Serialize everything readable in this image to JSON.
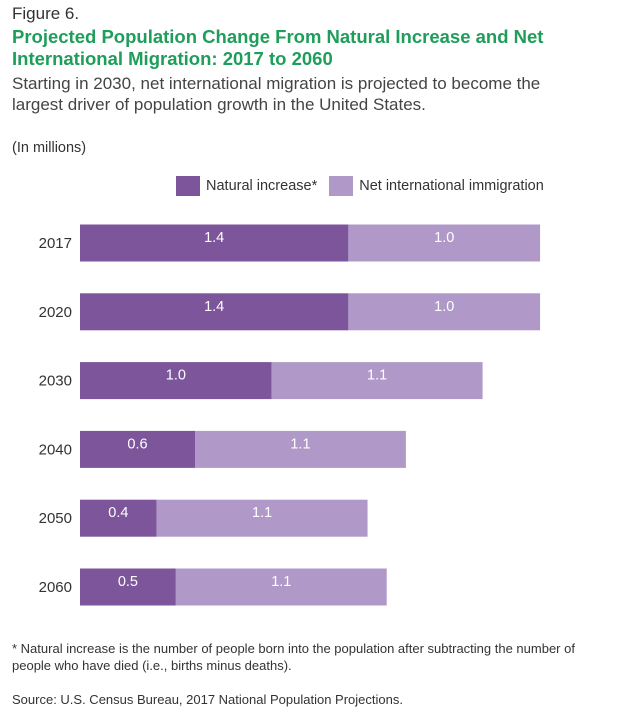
{
  "figure_label": "Figure 6.",
  "title": "Projected Population Change From Natural Increase and Net International Migration: 2017 to 2060",
  "subtitle": "Starting in 2030, net international migration is projected to become the largest driver of population growth in the United States.",
  "units": "(In millions)",
  "footnote": "* Natural increase is the number of people born into the population after subtracting the number of people who have died (i.e., births minus deaths).",
  "source": "Source: U.S. Census Bureau, 2017 National Population Projections.",
  "colors": {
    "natural": "#7d559b",
    "migration": "#b099c8",
    "label_text": "#ffffff",
    "axis_text": "#333333"
  },
  "chart_data": {
    "type": "bar",
    "orientation": "horizontal",
    "stacked": true,
    "categories": [
      "2017",
      "2020",
      "2030",
      "2040",
      "2050",
      "2060"
    ],
    "series": [
      {
        "name": "Natural increase*",
        "values": [
          1.4,
          1.4,
          1.0,
          0.6,
          0.4,
          0.5
        ]
      },
      {
        "name": "Net international immigration",
        "values": [
          1.0,
          1.0,
          1.1,
          1.1,
          1.1,
          1.1
        ]
      }
    ],
    "data_labels": [
      [
        "1.4",
        "1.4",
        "1.0",
        "0.6",
        "0.4",
        "0.5"
      ],
      [
        "1.0",
        "1.0",
        "1.1",
        "1.1",
        "1.1",
        "1.1"
      ]
    ],
    "legend_position": "top-right",
    "grid": false
  }
}
